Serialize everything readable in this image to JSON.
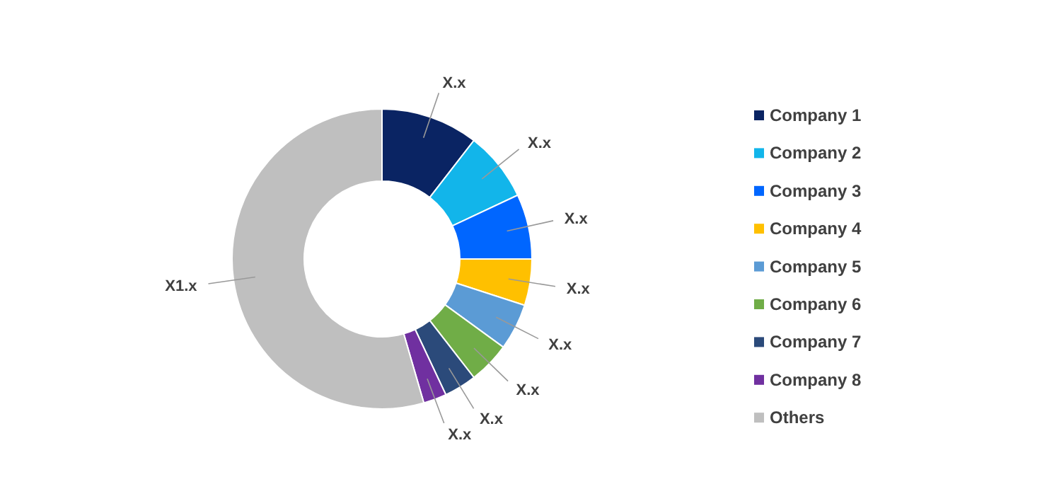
{
  "chart_data": {
    "type": "donut",
    "categories": [
      "Company 1",
      "Company 2",
      "Company 3",
      "Company 4",
      "Company 5",
      "Company 6",
      "Company 7",
      "Company 8",
      "Others"
    ],
    "values": [
      10.5,
      7.5,
      7,
      5,
      5,
      4.5,
      3.5,
      2.5,
      54.5
    ],
    "colors": [
      "#0a2463",
      "#12b5ea",
      "#0066ff",
      "#ffc000",
      "#5b9bd5",
      "#70ad47",
      "#2b4a7a",
      "#7030a0",
      "#bfbfbf"
    ],
    "value_labels": [
      "X.x",
      "X.x",
      "X.x",
      "X.x",
      "X.x",
      "X.x",
      "X.x",
      "X.x",
      "X1.x"
    ],
    "legend": "right"
  }
}
